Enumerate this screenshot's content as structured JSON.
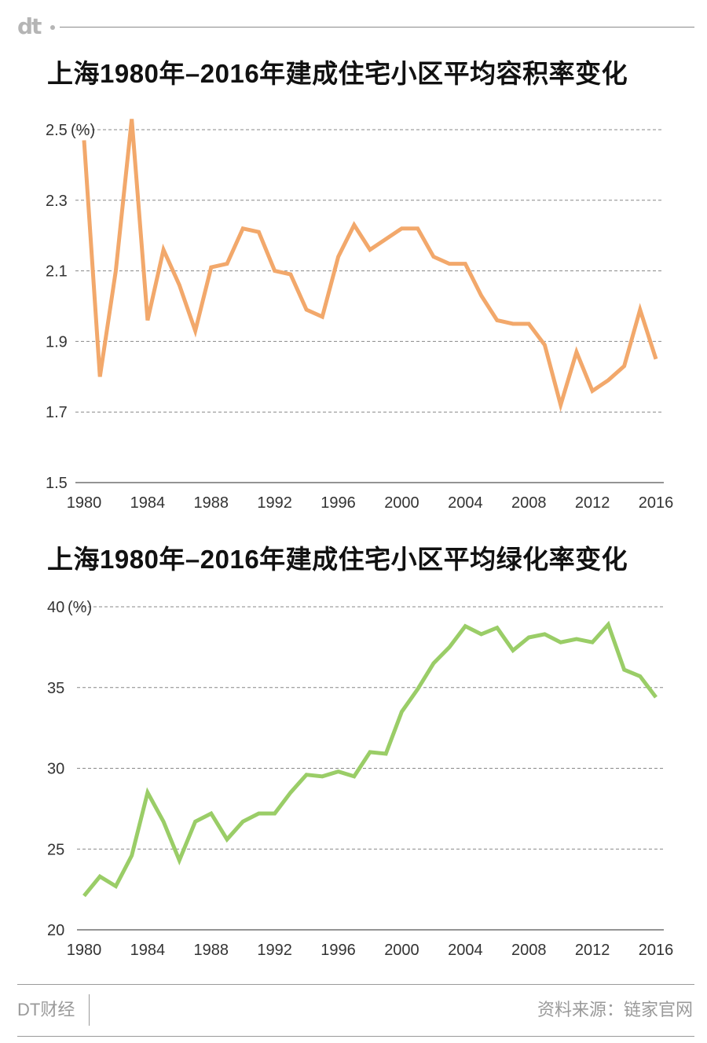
{
  "header": {
    "logo_text": "dt"
  },
  "footer": {
    "brand": "DT财经",
    "source": "资料来源：链家官网"
  },
  "chart_data": [
    {
      "type": "line",
      "title": "上海1980年–2016年建成住宅小区平均容积率变化",
      "color": "#f2a86b",
      "unit_label": "(%)",
      "ylim": [
        1.5,
        2.5
      ],
      "yticks": [
        1.5,
        1.7,
        1.9,
        2.1,
        2.3,
        2.5
      ],
      "ytick_labels": [
        "1.5",
        "1.7",
        "1.9",
        "2.1",
        "2.3",
        "2.5"
      ],
      "xticks": [
        1980,
        1984,
        1988,
        1992,
        1996,
        2000,
        2004,
        2008,
        2012,
        2016
      ],
      "grid": true,
      "series": [
        {
          "x": [
            1980,
            1981,
            1982,
            1983,
            1984,
            1985,
            1986,
            1987,
            1988,
            1989,
            1990,
            1991,
            1992,
            1993,
            1994,
            1995,
            1996,
            1997,
            1998,
            1999,
            2000,
            2001,
            2002,
            2003,
            2004,
            2005,
            2006,
            2007,
            2008,
            2009,
            2010,
            2011,
            2012,
            2013,
            2014,
            2015,
            2016
          ],
          "values": [
            2.47,
            1.8,
            2.1,
            2.53,
            1.96,
            2.16,
            2.06,
            1.93,
            2.11,
            2.12,
            2.22,
            2.21,
            2.1,
            2.09,
            1.99,
            1.97,
            2.14,
            2.23,
            2.16,
            2.19,
            2.22,
            2.22,
            2.14,
            2.12,
            2.12,
            2.03,
            1.96,
            1.95,
            1.95,
            1.89,
            1.72,
            1.87,
            1.76,
            1.79,
            1.83,
            1.99,
            1.85
          ]
        }
      ]
    },
    {
      "type": "line",
      "title": "上海1980年–2016年建成住宅小区平均绿化率变化",
      "color": "#9acd67",
      "unit_label": "(%)",
      "ylim": [
        20,
        40
      ],
      "yticks": [
        20,
        25,
        30,
        35,
        40
      ],
      "ytick_labels": [
        "20",
        "25",
        "30",
        "35",
        "40"
      ],
      "xticks": [
        1980,
        1984,
        1988,
        1992,
        1996,
        2000,
        2004,
        2008,
        2012,
        2016
      ],
      "grid": true,
      "series": [
        {
          "x": [
            1980,
            1981,
            1982,
            1983,
            1984,
            1985,
            1986,
            1987,
            1988,
            1989,
            1990,
            1991,
            1992,
            1993,
            1994,
            1995,
            1996,
            1997,
            1998,
            1999,
            2000,
            2001,
            2002,
            2003,
            2004,
            2005,
            2006,
            2007,
            2008,
            2009,
            2010,
            2011,
            2012,
            2013,
            2014,
            2015,
            2016
          ],
          "values": [
            22.1,
            23.3,
            22.7,
            24.6,
            28.5,
            26.7,
            24.3,
            26.7,
            27.2,
            25.6,
            26.7,
            27.2,
            27.2,
            28.5,
            29.6,
            29.5,
            29.8,
            29.5,
            31.0,
            30.9,
            33.5,
            34.9,
            36.5,
            37.5,
            38.8,
            38.3,
            38.7,
            37.3,
            38.1,
            38.3,
            37.8,
            38.0,
            37.8,
            38.9,
            36.1,
            35.7,
            34.4
          ]
        }
      ]
    }
  ]
}
